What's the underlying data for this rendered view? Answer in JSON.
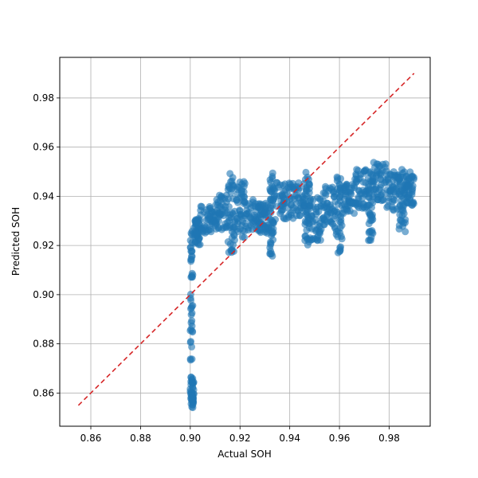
{
  "chart_data": {
    "type": "scatter",
    "title": "",
    "xlabel": "Actual SOH",
    "ylabel": "Predicted SOH",
    "xlim": [
      0.8475,
      0.9965
    ],
    "ylim": [
      0.8465,
      0.9965
    ],
    "xticks": [
      0.86,
      0.88,
      0.9,
      0.92,
      0.94,
      0.96,
      0.98
    ],
    "yticks": [
      0.86,
      0.88,
      0.9,
      0.92,
      0.94,
      0.96,
      0.98
    ],
    "xtick_labels": [
      "0.86",
      "0.88",
      "0.90",
      "0.92",
      "0.94",
      "0.96",
      "0.98"
    ],
    "ytick_labels": [
      "0.86",
      "0.88",
      "0.90",
      "0.92",
      "0.94",
      "0.96",
      "0.98"
    ],
    "grid": true,
    "colors": {
      "points": "#1f77b4",
      "reference_line": "#d62728"
    },
    "reference_line": {
      "x": [
        0.855,
        0.99
      ],
      "y": [
        0.855,
        0.99
      ],
      "style": "dashed"
    },
    "clusters": [
      {
        "x": [
          0.9,
          0.9015
        ],
        "y": [
          0.854,
          0.866
        ]
      },
      {
        "x": [
          0.9,
          0.901
        ],
        "y": [
          0.866,
          0.926
        ]
      },
      {
        "x": [
          0.9015,
          0.904
        ],
        "y": [
          0.92,
          0.931
        ]
      },
      {
        "x": [
          0.904,
          0.91
        ],
        "y": [
          0.925,
          0.936
        ]
      },
      {
        "x": [
          0.91,
          0.915
        ],
        "y": [
          0.926,
          0.941
        ]
      },
      {
        "x": [
          0.915,
          0.918
        ],
        "y": [
          0.917,
          0.95
        ]
      },
      {
        "x": [
          0.918,
          0.922
        ],
        "y": [
          0.923,
          0.946
        ]
      },
      {
        "x": [
          0.922,
          0.928
        ],
        "y": [
          0.926,
          0.939
        ]
      },
      {
        "x": [
          0.928,
          0.932
        ],
        "y": [
          0.925,
          0.938
        ]
      },
      {
        "x": [
          0.932,
          0.9335
        ],
        "y": [
          0.915,
          0.951
        ]
      },
      {
        "x": [
          0.9335,
          0.94
        ],
        "y": [
          0.93,
          0.946
        ]
      },
      {
        "x": [
          0.94,
          0.946
        ],
        "y": [
          0.931,
          0.946
        ]
      },
      {
        "x": [
          0.946,
          0.948
        ],
        "y": [
          0.92,
          0.951
        ]
      },
      {
        "x": [
          0.948,
          0.953
        ],
        "y": [
          0.922,
          0.94
        ]
      },
      {
        "x": [
          0.953,
          0.958
        ],
        "y": [
          0.928,
          0.944
        ]
      },
      {
        "x": [
          0.958,
          0.961
        ],
        "y": [
          0.917,
          0.951
        ]
      },
      {
        "x": [
          0.961,
          0.966
        ],
        "y": [
          0.933,
          0.946
        ]
      },
      {
        "x": [
          0.966,
          0.9715
        ],
        "y": [
          0.935,
          0.951
        ]
      },
      {
        "x": [
          0.9715,
          0.9735
        ],
        "y": [
          0.922,
          0.951
        ]
      },
      {
        "x": [
          0.9735,
          0.979
        ],
        "y": [
          0.938,
          0.954
        ]
      },
      {
        "x": [
          0.979,
          0.984
        ],
        "y": [
          0.934,
          0.951
        ]
      },
      {
        "x": [
          0.984,
          0.9865
        ],
        "y": [
          0.923,
          0.951
        ]
      },
      {
        "x": [
          0.9865,
          0.99
        ],
        "y": [
          0.936,
          0.95
        ]
      }
    ]
  }
}
